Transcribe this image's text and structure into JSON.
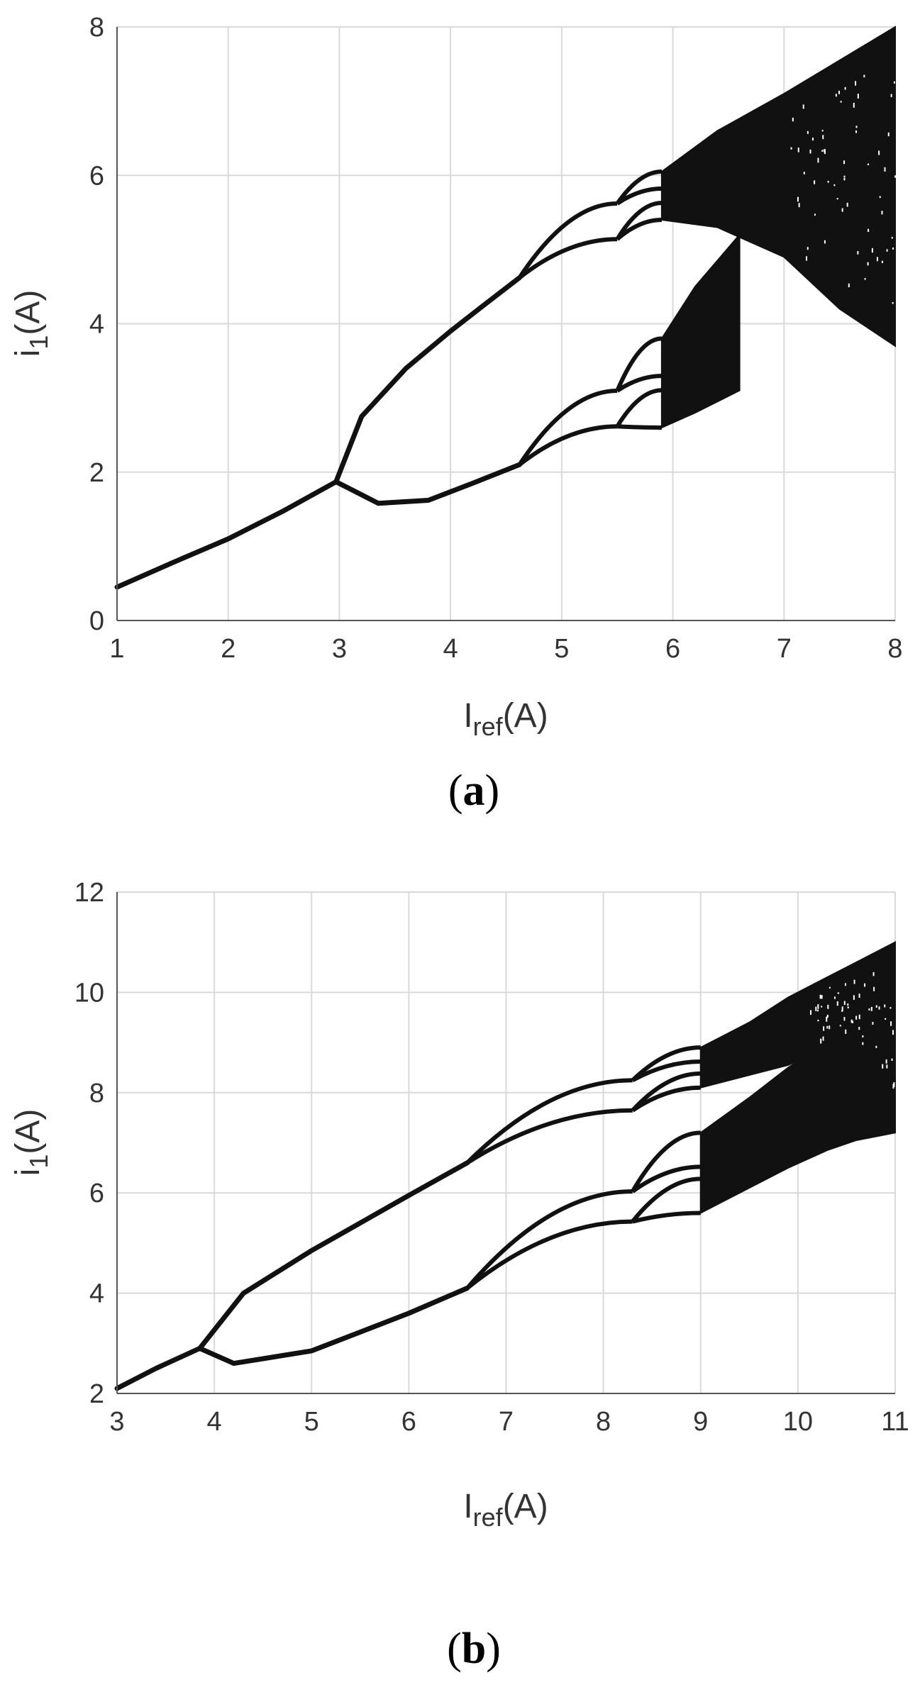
{
  "colors": {
    "ink": "#111111",
    "grid": "#d9d9d9",
    "axis": "#555555",
    "text": "#333333"
  },
  "chart_data": [
    {
      "panel": "a",
      "caption": "(a)",
      "type": "scatter",
      "subtype": "bifurcation diagram",
      "xlabel": "I_ref(A)",
      "ylabel": "i_1(A)",
      "xlim": [
        1,
        8
      ],
      "ylim": [
        0,
        8
      ],
      "xticks": [
        1,
        2,
        3,
        4,
        5,
        6,
        7,
        8
      ],
      "yticks": [
        0,
        2,
        4,
        6,
        8
      ],
      "grid": true,
      "period1": {
        "x": [
          1,
          1.5,
          2,
          2.5,
          2.97
        ],
        "y": [
          0.45,
          0.78,
          1.1,
          1.48,
          1.87
        ]
      },
      "period2_upper": {
        "x": [
          2.97,
          3.2,
          3.6,
          4.0,
          4.3,
          4.62
        ],
        "y": [
          1.87,
          2.75,
          3.4,
          3.9,
          4.25,
          4.62
        ]
      },
      "period2_lower": {
        "x": [
          2.97,
          3.35,
          3.8,
          4.2,
          4.62
        ],
        "y": [
          1.87,
          1.58,
          1.62,
          1.85,
          2.1
        ]
      },
      "bifurcations": {
        "period_doubling_1": 2.97,
        "period_doubling_2": 4.62,
        "period_doubling_3": 5.5,
        "chaos_onset": 5.9
      },
      "chaotic_band_upper": {
        "x": [
          5.9,
          6.4,
          7,
          7.5,
          8
        ],
        "min": [
          5.4,
          5.3,
          4.9,
          4.2,
          3.7
        ],
        "max": [
          6.05,
          6.6,
          7.1,
          7.55,
          8.0
        ]
      },
      "chaotic_band_lower": {
        "x": [
          5.9,
          6.2,
          6.6
        ],
        "min": [
          2.6,
          2.8,
          3.1
        ],
        "max": [
          3.8,
          4.5,
          5.2
        ]
      }
    },
    {
      "panel": "b",
      "caption": "(b)",
      "type": "scatter",
      "subtype": "bifurcation diagram",
      "xlabel": "I_ref(A)",
      "ylabel": "i_1(A)",
      "xlim": [
        3,
        11
      ],
      "ylim": [
        2,
        12
      ],
      "xticks": [
        3,
        4,
        5,
        6,
        7,
        8,
        9,
        10,
        11
      ],
      "yticks": [
        2,
        4,
        6,
        8,
        10,
        12
      ],
      "grid": true,
      "period1": {
        "x": [
          3,
          3.4,
          3.85
        ],
        "y": [
          2.1,
          2.5,
          2.9
        ]
      },
      "period2_upper": {
        "x": [
          3.85,
          4.3,
          5,
          6,
          6.6
        ],
        "y": [
          2.9,
          4.0,
          4.85,
          5.95,
          6.6
        ]
      },
      "period2_lower": {
        "x": [
          3.85,
          4.2,
          5,
          6,
          6.6
        ],
        "y": [
          2.9,
          2.6,
          2.85,
          3.6,
          4.1
        ]
      },
      "bifurcations": {
        "period_doubling_1": 3.85,
        "period_doubling_2": 6.6,
        "period_doubling_3": 8.3,
        "chaos_onset": 9.0
      },
      "chaotic_band_upper": {
        "x": [
          9,
          9.5,
          9.9,
          10.3,
          10.6,
          11
        ],
        "min": [
          8.1,
          8.35,
          8.55,
          8.9,
          9.1,
          7.2
        ],
        "max": [
          8.9,
          9.4,
          9.9,
          10.3,
          10.6,
          11.0
        ]
      },
      "chaotic_band_lower": {
        "x": [
          9,
          9.5,
          9.9,
          10.3,
          10.6,
          11
        ],
        "min": [
          5.6,
          6.1,
          6.5,
          6.85,
          7.05,
          7.2
        ],
        "max": [
          7.2,
          7.9,
          8.5,
          9.0,
          9.2,
          9.5
        ]
      }
    }
  ]
}
